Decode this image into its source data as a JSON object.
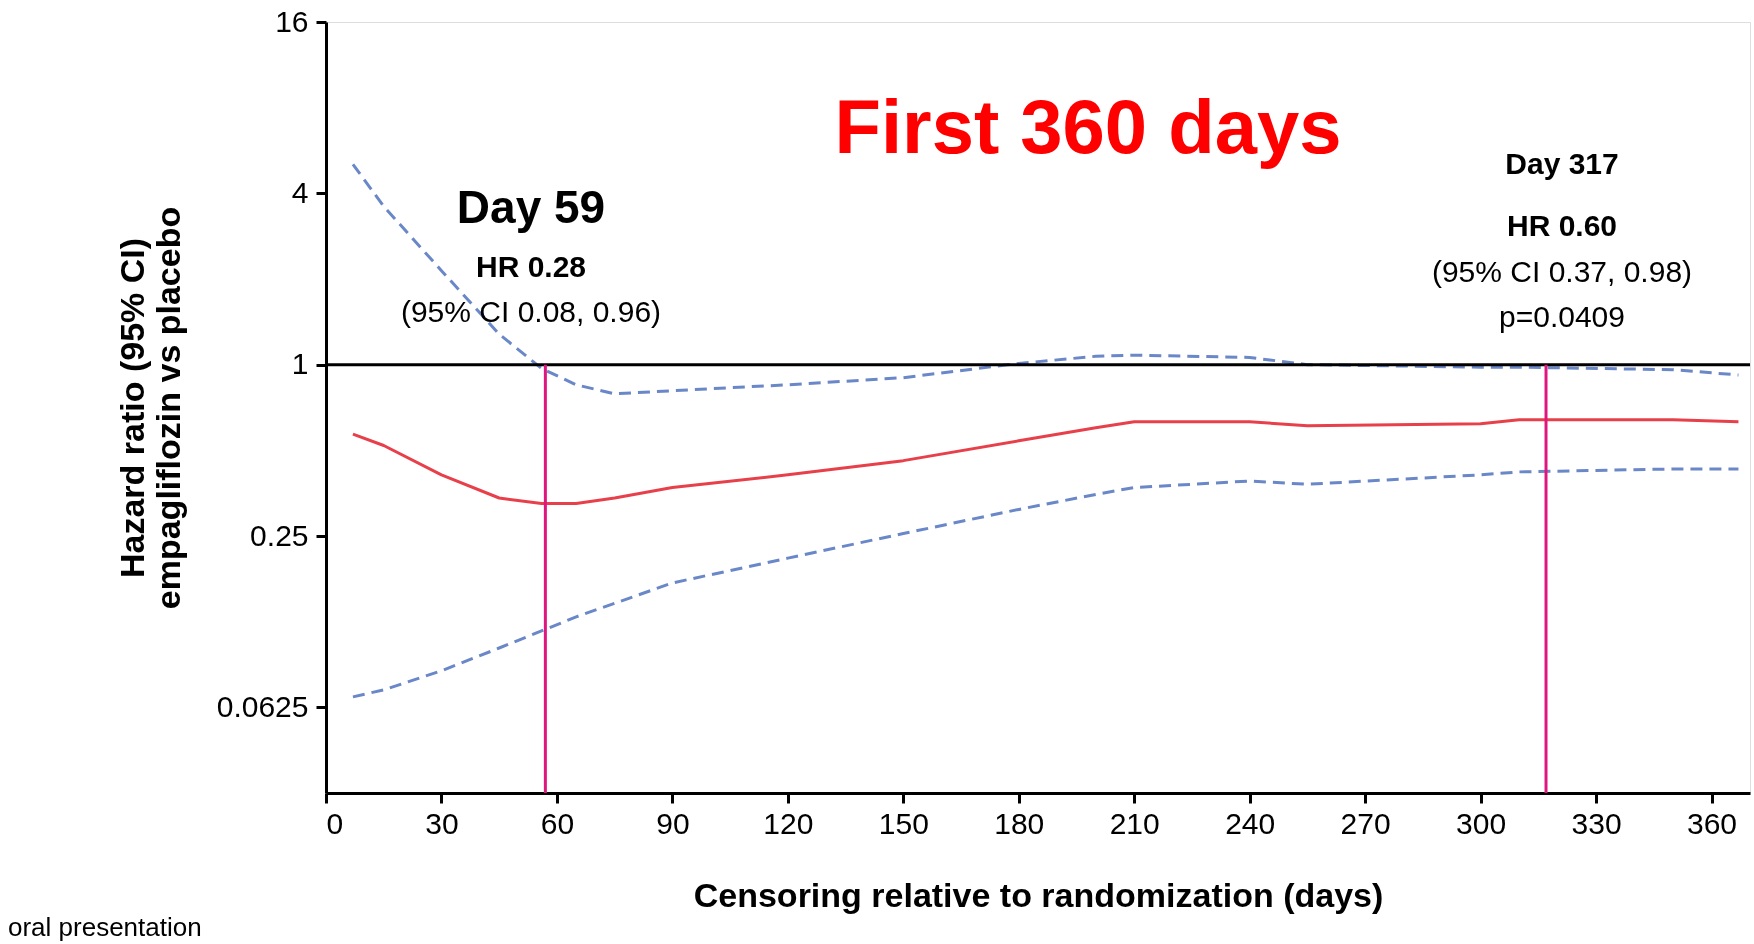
{
  "chart_data": {
    "type": "line",
    "title": "First 360 days",
    "xlabel": "Censoring relative to randomization (days)",
    "ylabel": "Hazard ratio (95% CI)\nempagliflozin vs placebo",
    "x": [
      7,
      15,
      30,
      45,
      56,
      65,
      75,
      90,
      120,
      150,
      180,
      200,
      210,
      240,
      255,
      300,
      310,
      350,
      367
    ],
    "series": [
      {
        "color": "#e8404a",
        "line_style": "solid",
        "values": [
          0.57,
          0.52,
          0.41,
          0.34,
          0.325,
          0.325,
          0.34,
          0.37,
          0.41,
          0.46,
          0.54,
          0.6,
          0.63,
          0.63,
          0.61,
          0.62,
          0.64,
          0.64,
          0.63
        ]
      },
      {
        "color": "#6a87c8",
        "line_style": "dashed",
        "values": [
          5.06,
          3.6,
          2.14,
          1.28,
          0.97,
          0.85,
          0.79,
          0.81,
          0.85,
          0.9,
          1.01,
          1.07,
          1.08,
          1.06,
          1.0,
          0.98,
          0.98,
          0.96,
          0.92
        ]
      },
      {
        "color": "#6a87c8",
        "line_style": "dashed",
        "values": [
          0.068,
          0.072,
          0.084,
          0.101,
          0.116,
          0.13,
          0.145,
          0.171,
          0.209,
          0.255,
          0.31,
          0.35,
          0.37,
          0.39,
          0.38,
          0.41,
          0.42,
          0.43,
          0.43
        ]
      }
    ],
    "xlim": [
      0,
      370
    ],
    "xticks": [
      0,
      30,
      60,
      90,
      120,
      150,
      180,
      210,
      240,
      270,
      300,
      330,
      360
    ],
    "ylim": [
      0.03125,
      16
    ],
    "yticks": [
      0.0625,
      0.25,
      1,
      4,
      16
    ],
    "log": "y",
    "grid": false,
    "ref_lines": [
      {
        "axis": "y",
        "value": 1,
        "color": "#000000"
      },
      {
        "axis": "x",
        "value": 57,
        "color": "#e0167f"
      },
      {
        "axis": "x",
        "value": 317,
        "color": "#e0167f"
      }
    ],
    "annotations": [
      "Day 59",
      "HR 0.28",
      "(95% CI 0.08, 0.96)",
      "Day 317",
      "HR 0.60",
      "(95% CI 0.37, 0.98)",
      "p=0.0409",
      "oral presentation"
    ]
  }
}
